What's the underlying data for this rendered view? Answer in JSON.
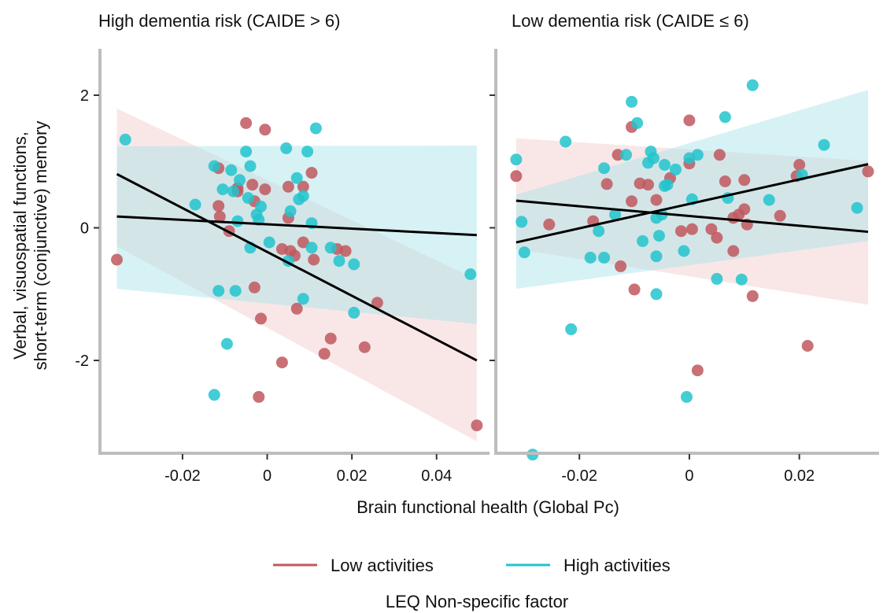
{
  "chart_data": {
    "type": "scatter",
    "ylabel_lines": [
      "Verbal, visuospatial functions,",
      "short-term (conjunctive) memory"
    ],
    "xlabel": "Brain functional health (Global Pc)",
    "legend": {
      "title": "LEQ Non-specific factor",
      "placement": "bottom",
      "entries": [
        "Low activities",
        "High activities"
      ]
    },
    "colors": {
      "Low activities": "#c0585e",
      "High activities": "#22c4cc",
      "Low activities_band": "#f2c9cc",
      "High activities_band": "#a7e3e8",
      "fit_line": "#000000",
      "axis": "#bdbdbd"
    },
    "grid": false,
    "ylim": [
      -3.4,
      2.7
    ],
    "yticks": [
      2,
      0,
      -2
    ],
    "ytick_labels": [
      "2",
      "0",
      "-2"
    ],
    "panels": [
      {
        "title": "High dementia risk (CAIDE > 6)",
        "xlim": [
          -0.0395,
          0.0525
        ],
        "xticks": [
          -0.02,
          0,
          0.02,
          0.04
        ],
        "xtick_labels": [
          "-0.02",
          "0",
          "0.02",
          "0.04"
        ],
        "series": [
          {
            "name": "Low activities",
            "points": [
              [
                -0.0355,
                -0.48
              ],
              [
                -0.0115,
                0.9
              ],
              [
                -0.0115,
                0.33
              ],
              [
                -0.0112,
                0.17
              ],
              [
                -0.009,
                -0.05
              ],
              [
                -0.007,
                0.55
              ],
              [
                -0.007,
                0.6
              ],
              [
                -0.005,
                1.58
              ],
              [
                -0.0035,
                0.65
              ],
              [
                -0.003,
                0.4
              ],
              [
                -0.003,
                -0.9
              ],
              [
                -0.0015,
                -1.37
              ],
              [
                -0.0005,
                1.48
              ],
              [
                -0.0005,
                0.58
              ],
              [
                0.0035,
                -0.32
              ],
              [
                0.0035,
                -2.03
              ],
              [
                0.005,
                0.62
              ],
              [
                0.005,
                0.15
              ],
              [
                0.0055,
                -0.35
              ],
              [
                0.0065,
                -0.42
              ],
              [
                0.007,
                -1.22
              ],
              [
                0.0085,
                -0.22
              ],
              [
                0.0085,
                0.62
              ],
              [
                0.0105,
                0.83
              ],
              [
                0.011,
                -0.48
              ],
              [
                0.0135,
                -1.9
              ],
              [
                0.015,
                -1.67
              ],
              [
                0.0165,
                -0.32
              ],
              [
                0.0185,
                -0.35
              ],
              [
                0.023,
                -1.8
              ],
              [
                0.026,
                -1.13
              ],
              [
                0.0495,
                -2.98
              ],
              [
                -0.002,
                -2.55
              ]
            ]
          },
          {
            "name": "High activities",
            "points": [
              [
                -0.0335,
                1.33
              ],
              [
                -0.017,
                0.35
              ],
              [
                -0.0125,
                0.93
              ],
              [
                -0.0115,
                -0.95
              ],
              [
                -0.0105,
                0.58
              ],
              [
                -0.0095,
                -1.75
              ],
              [
                -0.0085,
                0.87
              ],
              [
                -0.008,
                0.55
              ],
              [
                -0.0075,
                -0.95
              ],
              [
                -0.007,
                0.1
              ],
              [
                -0.0065,
                0.72
              ],
              [
                -0.005,
                1.15
              ],
              [
                -0.0045,
                0.45
              ],
              [
                -0.004,
                0.93
              ],
              [
                -0.004,
                -0.3
              ],
              [
                -0.0025,
                0.2
              ],
              [
                -0.002,
                0.12
              ],
              [
                -0.0015,
                0.32
              ],
              [
                0.0005,
                -0.22
              ],
              [
                0.0045,
                1.2
              ],
              [
                0.005,
                -0.5
              ],
              [
                0.0055,
                0.25
              ],
              [
                0.007,
                0.75
              ],
              [
                0.0075,
                0.43
              ],
              [
                0.0085,
                0.48
              ],
              [
                0.0085,
                -1.07
              ],
              [
                0.0095,
                1.15
              ],
              [
                0.0105,
                -0.3
              ],
              [
                0.0105,
                0.07
              ],
              [
                0.0115,
                1.5
              ],
              [
                0.015,
                -0.3
              ],
              [
                0.017,
                -0.5
              ],
              [
                0.0205,
                -0.55
              ],
              [
                0.0205,
                -1.28
              ],
              [
                0.048,
                -0.7
              ],
              [
                -0.0125,
                -2.52
              ]
            ]
          }
        ],
        "fits": {
          "Low activities": {
            "x": [
              -0.0355,
              0.0495
            ],
            "y": [
              0.81,
              -2.0
            ],
            "lower": [
              -0.28,
              -3.22
            ],
            "upper": [
              1.8,
              -0.78
            ]
          },
          "High activities": {
            "x": [
              -0.0355,
              0.0495
            ],
            "y": [
              0.17,
              -0.11
            ],
            "lower": [
              -0.92,
              -1.45
            ],
            "upper": [
              1.23,
              1.24
            ]
          }
        }
      },
      {
        "title": "Low dementia risk (CAIDE ≤ 6)",
        "xlim": [
          -0.0352,
          0.0345
        ],
        "xticks": [
          -0.02,
          0,
          0.02
        ],
        "xtick_labels": [
          "-0.02",
          "0",
          "0.02"
        ],
        "series": [
          {
            "name": "Low activities",
            "points": [
              [
                -0.0315,
                0.78
              ],
              [
                -0.0255,
                0.05
              ],
              [
                -0.0175,
                0.1
              ],
              [
                -0.015,
                0.66
              ],
              [
                -0.013,
                1.1
              ],
              [
                -0.0125,
                -0.58
              ],
              [
                -0.0105,
                0.4
              ],
              [
                -0.0105,
                1.52
              ],
              [
                -0.01,
                -0.93
              ],
              [
                -0.009,
                0.67
              ],
              [
                -0.0075,
                0.65
              ],
              [
                -0.006,
                0.42
              ],
              [
                -0.0035,
                0.75
              ],
              [
                -0.0015,
                -0.05
              ],
              [
                0,
                1.62
              ],
              [
                0,
                0.97
              ],
              [
                0.0005,
                -0.02
              ],
              [
                0.0015,
                -2.15
              ],
              [
                0.004,
                -0.02
              ],
              [
                0.005,
                -0.15
              ],
              [
                0.0055,
                1.1
              ],
              [
                0.0065,
                0.7
              ],
              [
                0.008,
                -0.35
              ],
              [
                0.008,
                0.15
              ],
              [
                0.009,
                0.2
              ],
              [
                0.01,
                0.28
              ],
              [
                0.01,
                0.72
              ],
              [
                0.0105,
                0.05
              ],
              [
                0.0115,
                -1.03
              ],
              [
                0.0165,
                0.18
              ],
              [
                0.0195,
                0.78
              ],
              [
                0.02,
                0.95
              ],
              [
                0.0215,
                -1.78
              ],
              [
                0.0325,
                0.85
              ]
            ]
          },
          {
            "name": "High activities",
            "points": [
              [
                -0.0315,
                1.03
              ],
              [
                -0.0305,
                0.09
              ],
              [
                -0.03,
                -0.37
              ],
              [
                -0.0285,
                -3.42
              ],
              [
                -0.0225,
                1.3
              ],
              [
                -0.0215,
                -1.53
              ],
              [
                -0.018,
                -0.45
              ],
              [
                -0.0165,
                -0.05
              ],
              [
                -0.0155,
                0.9
              ],
              [
                -0.0155,
                -0.45
              ],
              [
                -0.0135,
                0.2
              ],
              [
                -0.0115,
                1.1
              ],
              [
                -0.0105,
                1.9
              ],
              [
                -0.0095,
                1.58
              ],
              [
                -0.0085,
                -0.2
              ],
              [
                -0.0075,
                0.98
              ],
              [
                -0.007,
                1.15
              ],
              [
                -0.0065,
                1.05
              ],
              [
                -0.006,
                -0.43
              ],
              [
                -0.006,
                -1.0
              ],
              [
                -0.006,
                0.15
              ],
              [
                -0.0055,
                -0.12
              ],
              [
                -0.005,
                0.2
              ],
              [
                -0.0045,
                0.63
              ],
              [
                -0.0045,
                0.95
              ],
              [
                -0.004,
                0.65
              ],
              [
                -0.0025,
                0.88
              ],
              [
                -0.001,
                -0.35
              ],
              [
                -0.0005,
                -2.55
              ],
              [
                0,
                1.05
              ],
              [
                0.0005,
                0.43
              ],
              [
                0.0015,
                1.1
              ],
              [
                0.005,
                -0.77
              ],
              [
                0.0065,
                1.67
              ],
              [
                0.007,
                0.45
              ],
              [
                0.0095,
                -0.78
              ],
              [
                0.0115,
                2.15
              ],
              [
                0.0145,
                0.42
              ],
              [
                0.0205,
                0.8
              ],
              [
                0.0245,
                1.25
              ],
              [
                0.0305,
                0.3
              ]
            ]
          }
        ],
        "fits": {
          "Low activities": {
            "x": [
              -0.0315,
              0.0325
            ],
            "y": [
              0.41,
              -0.06
            ],
            "lower": [
              -0.32,
              -1.16
            ],
            "upper": [
              1.35,
              1.01
            ]
          },
          "High activities": {
            "x": [
              -0.0315,
              0.0325
            ],
            "y": [
              -0.22,
              0.96
            ],
            "lower": [
              -0.92,
              -0.2
            ],
            "upper": [
              0.5,
              2.08
            ]
          }
        }
      }
    ]
  }
}
